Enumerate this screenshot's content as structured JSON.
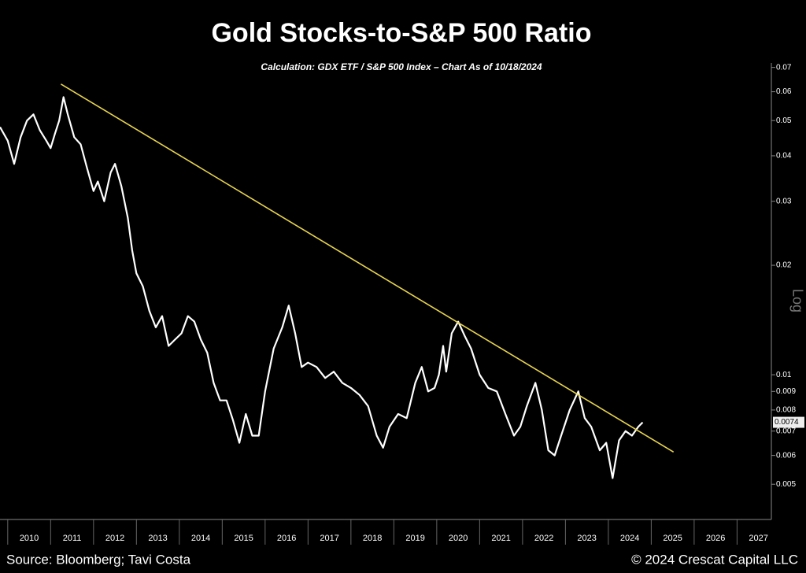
{
  "chart_data": {
    "type": "line",
    "title": "Gold Stocks-to-S&P 500 Ratio",
    "subtitle": "Calculation: GDX ETF / S&P 500 Index – Chart As of 10/18/2024",
    "y_axis_label": "Log",
    "source": "Source: Bloomberg; Tavi Costa",
    "copyright": "© 2024 Crescat Capital LLC",
    "log_scale": true,
    "xlim": [
      2009.82,
      2027.8
    ],
    "xticks": [
      2010,
      2011,
      2012,
      2013,
      2014,
      2015,
      2016,
      2017,
      2018,
      2019,
      2020,
      2021,
      2022,
      2023,
      2024,
      2025,
      2026,
      2027
    ],
    "ylim": [
      0.004,
      0.072
    ],
    "yticks": [
      0.07,
      0.06,
      0.05,
      0.04,
      0.03,
      0.02,
      0.01,
      0.009,
      0.008,
      0.007,
      0.006,
      0.005
    ],
    "current_value": 0.0074,
    "series": [
      {
        "color": "#ffffff",
        "x": [
          2009.82,
          2010.0,
          2010.15,
          2010.3,
          2010.45,
          2010.6,
          2010.75,
          2010.9,
          2011.0,
          2011.1,
          2011.2,
          2011.3,
          2011.4,
          2011.55,
          2011.7,
          2011.85,
          2012.0,
          2012.1,
          2012.25,
          2012.4,
          2012.5,
          2012.65,
          2012.8,
          2012.9,
          2013.0,
          2013.15,
          2013.3,
          2013.45,
          2013.6,
          2013.75,
          2013.9,
          2014.05,
          2014.2,
          2014.35,
          2014.5,
          2014.65,
          2014.8,
          2014.95,
          2015.1,
          2015.25,
          2015.4,
          2015.55,
          2015.7,
          2015.85,
          2016.0,
          2016.2,
          2016.4,
          2016.55,
          2016.7,
          2016.85,
          2017.0,
          2017.2,
          2017.4,
          2017.6,
          2017.8,
          2018.0,
          2018.2,
          2018.4,
          2018.6,
          2018.75,
          2018.9,
          2019.1,
          2019.3,
          2019.5,
          2019.65,
          2019.8,
          2019.95,
          2020.05,
          2020.15,
          2020.22,
          2020.35,
          2020.5,
          2020.65,
          2020.8,
          2021.0,
          2021.2,
          2021.4,
          2021.6,
          2021.8,
          2021.95,
          2022.1,
          2022.3,
          2022.45,
          2022.6,
          2022.75,
          2022.9,
          2023.1,
          2023.3,
          2023.45,
          2023.6,
          2023.8,
          2023.95,
          2024.1,
          2024.25,
          2024.4,
          2024.55,
          2024.7,
          2024.8
        ],
        "values": [
          0.048,
          0.044,
          0.038,
          0.045,
          0.05,
          0.052,
          0.047,
          0.044,
          0.042,
          0.046,
          0.05,
          0.058,
          0.052,
          0.045,
          0.043,
          0.037,
          0.032,
          0.034,
          0.03,
          0.036,
          0.038,
          0.033,
          0.027,
          0.022,
          0.019,
          0.0175,
          0.015,
          0.0135,
          0.0145,
          0.012,
          0.0125,
          0.013,
          0.0145,
          0.014,
          0.0125,
          0.0115,
          0.0095,
          0.0085,
          0.0085,
          0.0075,
          0.0065,
          0.0078,
          0.0068,
          0.0068,
          0.009,
          0.0118,
          0.0135,
          0.0155,
          0.013,
          0.0105,
          0.0108,
          0.0105,
          0.0098,
          0.0102,
          0.0095,
          0.0092,
          0.0088,
          0.0082,
          0.0068,
          0.0063,
          0.0072,
          0.0078,
          0.0076,
          0.0095,
          0.0105,
          0.009,
          0.0092,
          0.01,
          0.012,
          0.0102,
          0.013,
          0.014,
          0.0128,
          0.0118,
          0.01,
          0.0092,
          0.009,
          0.0078,
          0.0068,
          0.0072,
          0.0082,
          0.0095,
          0.008,
          0.0062,
          0.006,
          0.0068,
          0.008,
          0.009,
          0.0076,
          0.0072,
          0.0062,
          0.0065,
          0.0052,
          0.0066,
          0.007,
          0.0068,
          0.0072,
          0.0074
        ]
      },
      {
        "color": "#e8d44d",
        "x": [
          2011.24,
          2025.52
        ],
        "values": [
          0.063,
          0.00613
        ]
      }
    ]
  }
}
